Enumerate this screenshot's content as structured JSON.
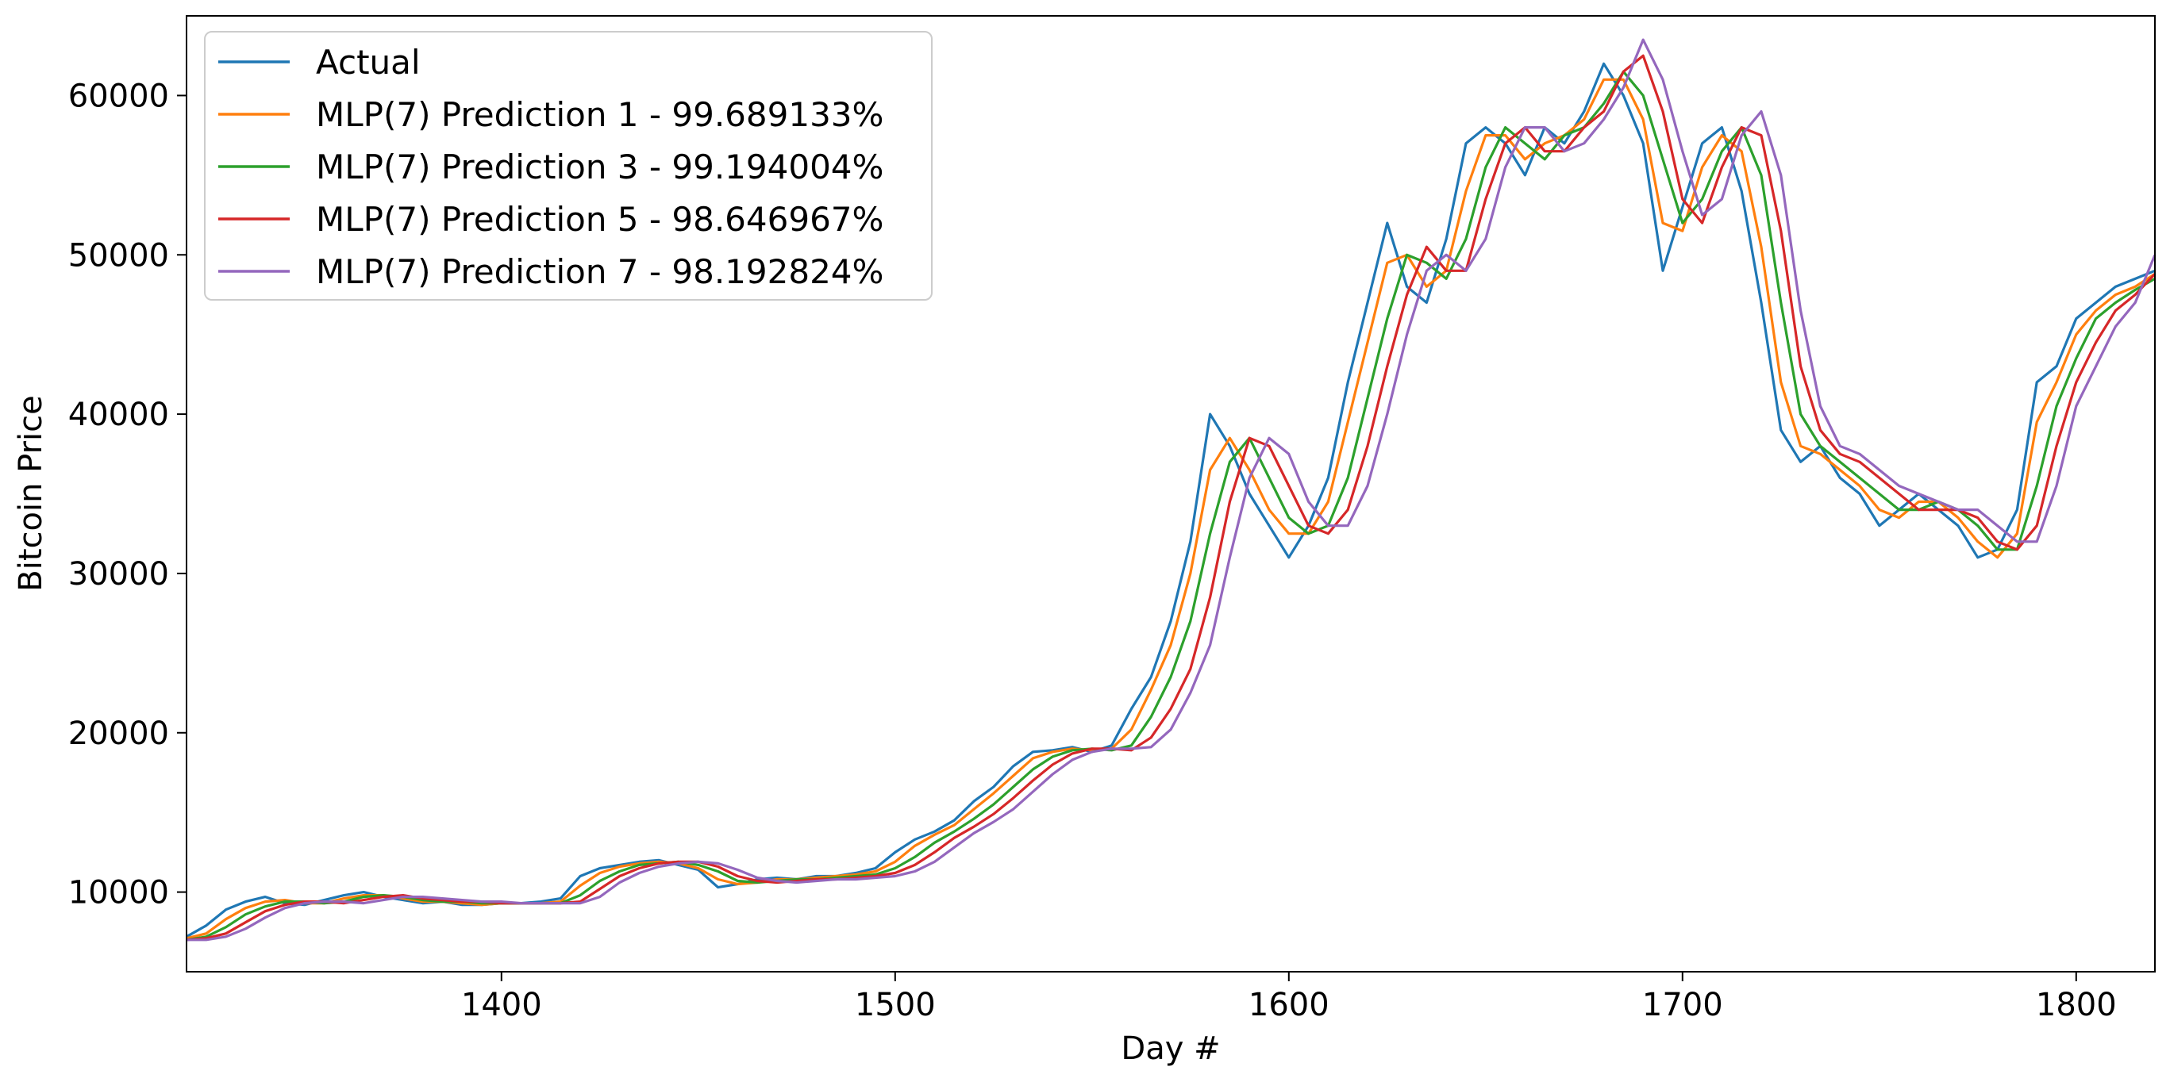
{
  "chart_data": {
    "type": "line",
    "xlabel": "Day #",
    "ylabel": "Bitcoin Price",
    "xlim": [
      1320,
      1820
    ],
    "ylim": [
      5000,
      65000
    ],
    "xticks": [
      1400,
      1500,
      1600,
      1700,
      1800
    ],
    "yticks": [
      10000,
      20000,
      30000,
      40000,
      50000,
      60000
    ],
    "xtick_labels": [
      "1400",
      "1500",
      "1600",
      "1700",
      "1800"
    ],
    "ytick_labels": [
      "10000",
      "20000",
      "30000",
      "40000",
      "50000",
      "60000"
    ],
    "grid": false,
    "legend_position": "upper-left",
    "x": [
      1320,
      1325,
      1330,
      1335,
      1340,
      1345,
      1350,
      1355,
      1360,
      1365,
      1370,
      1375,
      1380,
      1385,
      1390,
      1395,
      1400,
      1405,
      1410,
      1415,
      1420,
      1425,
      1430,
      1435,
      1440,
      1445,
      1450,
      1455,
      1460,
      1465,
      1470,
      1475,
      1480,
      1485,
      1490,
      1495,
      1500,
      1505,
      1510,
      1515,
      1520,
      1525,
      1530,
      1535,
      1540,
      1545,
      1550,
      1555,
      1560,
      1565,
      1570,
      1575,
      1580,
      1585,
      1590,
      1595,
      1600,
      1605,
      1610,
      1615,
      1620,
      1625,
      1630,
      1635,
      1640,
      1645,
      1650,
      1655,
      1660,
      1665,
      1670,
      1675,
      1680,
      1685,
      1690,
      1695,
      1700,
      1705,
      1710,
      1715,
      1720,
      1725,
      1730,
      1735,
      1740,
      1745,
      1750,
      1755,
      1760,
      1765,
      1770,
      1775,
      1780,
      1785,
      1790,
      1795,
      1800,
      1805,
      1810,
      1815,
      1820
    ],
    "series": [
      {
        "name": "Actual",
        "color": "#1f77b4",
        "values": [
          7200,
          7900,
          8900,
          9400,
          9700,
          9300,
          9200,
          9500,
          9800,
          10000,
          9700,
          9500,
          9300,
          9400,
          9200,
          9200,
          9300,
          9300,
          9400,
          9600,
          11000,
          11500,
          11700,
          11900,
          12000,
          11700,
          11400,
          10300,
          10500,
          10800,
          10900,
          10800,
          11000,
          11000,
          11200,
          11500,
          12500,
          13300,
          13800,
          14500,
          15700,
          16600,
          17900,
          18800,
          18900,
          19100,
          18800,
          19200,
          21500,
          23500,
          27000,
          32000,
          40000,
          38000,
          35000,
          33000,
          31000,
          33000,
          36000,
          42000,
          47000,
          52000,
          48000,
          47000,
          51000,
          57000,
          58000,
          57000,
          55000,
          58000,
          57000,
          59000,
          62000,
          60000,
          57000,
          49000,
          53000,
          57000,
          58000,
          54000,
          47000,
          39000,
          37000,
          38000,
          36000,
          35000,
          33000,
          34000,
          35000,
          34000,
          33000,
          31000,
          31500,
          34000,
          42000,
          43000,
          46000,
          47000,
          48000,
          48500,
          49000
        ]
      },
      {
        "name": "MLP(7) Prediction 1 - 99.689133%",
        "color": "#ff7f0e",
        "values": [
          7100,
          7400,
          8300,
          9000,
          9400,
          9500,
          9300,
          9300,
          9600,
          9800,
          9800,
          9600,
          9400,
          9400,
          9300,
          9200,
          9300,
          9300,
          9300,
          9400,
          10400,
          11200,
          11600,
          11800,
          11900,
          11800,
          11500,
          10800,
          10500,
          10600,
          10800,
          10800,
          10900,
          11000,
          11100,
          11300,
          11900,
          12900,
          13600,
          14200,
          15200,
          16200,
          17300,
          18400,
          18800,
          19000,
          18900,
          19000,
          20200,
          22700,
          25500,
          30000,
          36500,
          38500,
          36500,
          34000,
          32500,
          32500,
          34500,
          39500,
          44500,
          49500,
          50000,
          48000,
          49000,
          54000,
          57500,
          57500,
          56000,
          57000,
          57500,
          58500,
          61000,
          61000,
          58500,
          52000,
          51500,
          55500,
          57500,
          56500,
          50500,
          42000,
          38000,
          37500,
          36500,
          35500,
          34000,
          33500,
          34500,
          34500,
          33500,
          32000,
          31000,
          32500,
          39500,
          42000,
          45000,
          46500,
          47500,
          48000,
          48800
        ]
      },
      {
        "name": "MLP(7) Prediction 3 - 99.194004%",
        "color": "#2ca02c",
        "values": [
          7000,
          7200,
          7800,
          8600,
          9100,
          9400,
          9400,
          9300,
          9400,
          9700,
          9800,
          9700,
          9500,
          9400,
          9400,
          9300,
          9300,
          9300,
          9300,
          9300,
          9800,
          10700,
          11300,
          11700,
          11800,
          11900,
          11700,
          11300,
          10700,
          10600,
          10700,
          10800,
          10800,
          10900,
          11000,
          11100,
          11500,
          12200,
          13100,
          13800,
          14600,
          15500,
          16600,
          17700,
          18500,
          18900,
          19000,
          18900,
          19200,
          21000,
          23500,
          27000,
          32500,
          37000,
          38500,
          36000,
          33500,
          32500,
          33000,
          36000,
          41000,
          46000,
          50000,
          49500,
          48500,
          51000,
          55500,
          58000,
          57000,
          56000,
          57500,
          58000,
          59500,
          61500,
          60000,
          56000,
          52000,
          53500,
          56500,
          58000,
          55000,
          47000,
          40000,
          38000,
          37000,
          36000,
          35000,
          34000,
          34000,
          34500,
          34000,
          33000,
          31500,
          31500,
          35500,
          40500,
          43500,
          46000,
          47000,
          47800,
          48500
        ]
      },
      {
        "name": "MLP(7) Prediction 5 - 98.646967%",
        "color": "#d62728",
        "values": [
          7000,
          7100,
          7400,
          8100,
          8800,
          9200,
          9400,
          9400,
          9300,
          9500,
          9700,
          9800,
          9600,
          9500,
          9400,
          9400,
          9300,
          9300,
          9300,
          9300,
          9400,
          10200,
          11000,
          11500,
          11800,
          11900,
          11900,
          11600,
          11000,
          10700,
          10600,
          10700,
          10800,
          10800,
          10900,
          11000,
          11200,
          11700,
          12500,
          13400,
          14100,
          14900,
          15900,
          17000,
          18000,
          18700,
          19000,
          19000,
          18900,
          19700,
          21500,
          24000,
          28500,
          34500,
          38500,
          38000,
          35500,
          33000,
          32500,
          34000,
          38000,
          43000,
          47500,
          50500,
          49000,
          49000,
          53500,
          57000,
          58000,
          56500,
          56500,
          58000,
          59000,
          61500,
          62500,
          59000,
          53500,
          52000,
          55500,
          58000,
          57500,
          51500,
          43000,
          39000,
          37500,
          37000,
          36000,
          35000,
          34000,
          34000,
          34000,
          33500,
          32000,
          31500,
          33000,
          38000,
          42000,
          44500,
          46500,
          47500,
          48800
        ]
      },
      {
        "name": "MLP(7) Prediction 7 - 98.192824%",
        "color": "#9467bd",
        "values": [
          7000,
          7000,
          7200,
          7700,
          8400,
          9000,
          9300,
          9400,
          9400,
          9300,
          9500,
          9700,
          9700,
          9600,
          9500,
          9400,
          9400,
          9300,
          9300,
          9300,
          9300,
          9700,
          10600,
          11200,
          11600,
          11800,
          11900,
          11800,
          11400,
          10900,
          10700,
          10600,
          10700,
          10800,
          10800,
          10900,
          11000,
          11300,
          11900,
          12800,
          13700,
          14400,
          15200,
          16300,
          17400,
          18300,
          18800,
          19000,
          19000,
          19100,
          20200,
          22500,
          25500,
          31000,
          36000,
          38500,
          37500,
          34500,
          33000,
          33000,
          35500,
          40000,
          45000,
          49000,
          50000,
          49000,
          51000,
          55500,
          58000,
          58000,
          56500,
          57000,
          58500,
          60500,
          63500,
          61000,
          56500,
          52500,
          53500,
          57500,
          59000,
          55000,
          46500,
          40500,
          38000,
          37500,
          36500,
          35500,
          35000,
          34500,
          34000,
          34000,
          33000,
          32000,
          32000,
          35500,
          40500,
          43000,
          45500,
          47000,
          50000
        ]
      }
    ]
  }
}
